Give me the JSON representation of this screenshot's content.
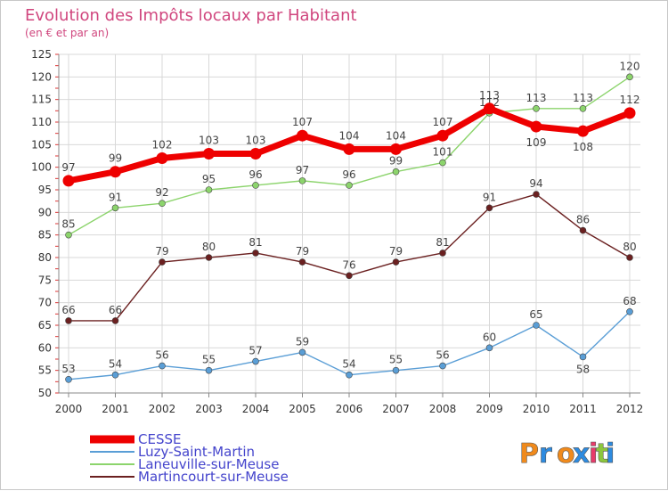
{
  "chart_data": {
    "type": "line",
    "title": "Evolution des Impôts locaux par Habitant",
    "subtitle": "(en € et par an)",
    "xlabel": "",
    "ylabel": "",
    "ylim": [
      50,
      125
    ],
    "yticks": [
      50,
      55,
      60,
      65,
      70,
      75,
      80,
      85,
      90,
      95,
      100,
      105,
      110,
      115,
      120,
      125
    ],
    "x": [
      "2000",
      "2001",
      "2002",
      "2003",
      "2004",
      "2005",
      "2006",
      "2007",
      "2008",
      "2009",
      "2010",
      "2011",
      "2012"
    ],
    "grid": true,
    "legend_position": "bottom-left",
    "series": [
      {
        "name": "CESSE",
        "color": "#ee0000",
        "values": [
          97,
          99,
          102,
          103,
          103,
          107,
          104,
          104,
          107,
          113,
          109,
          108,
          112
        ]
      },
      {
        "name": "Luzy-Saint-Martin",
        "color": "#5a9ed6",
        "values": [
          53,
          54,
          56,
          55,
          57,
          59,
          54,
          55,
          56,
          60,
          65,
          58,
          68
        ]
      },
      {
        "name": "Laneuville-sur-Meuse",
        "color": "#8cd46c",
        "values": [
          85,
          91,
          92,
          95,
          96,
          97,
          96,
          99,
          101,
          112,
          113,
          113,
          120
        ]
      },
      {
        "name": "Martincourt-sur-Meuse",
        "color": "#6b2020",
        "values": [
          66,
          66,
          79,
          80,
          81,
          79,
          76,
          79,
          81,
          91,
          94,
          86,
          80
        ]
      }
    ]
  },
  "logo": {
    "text": "Proxiti",
    "letters": [
      "P",
      "r",
      "o",
      "x",
      "i",
      "t",
      "i"
    ],
    "colors": [
      "#f08a1c",
      "#2d8be0",
      "#f08a1c",
      "#2d8be0",
      "#e83a6a",
      "#8cc63e",
      "#2d8be0"
    ]
  }
}
